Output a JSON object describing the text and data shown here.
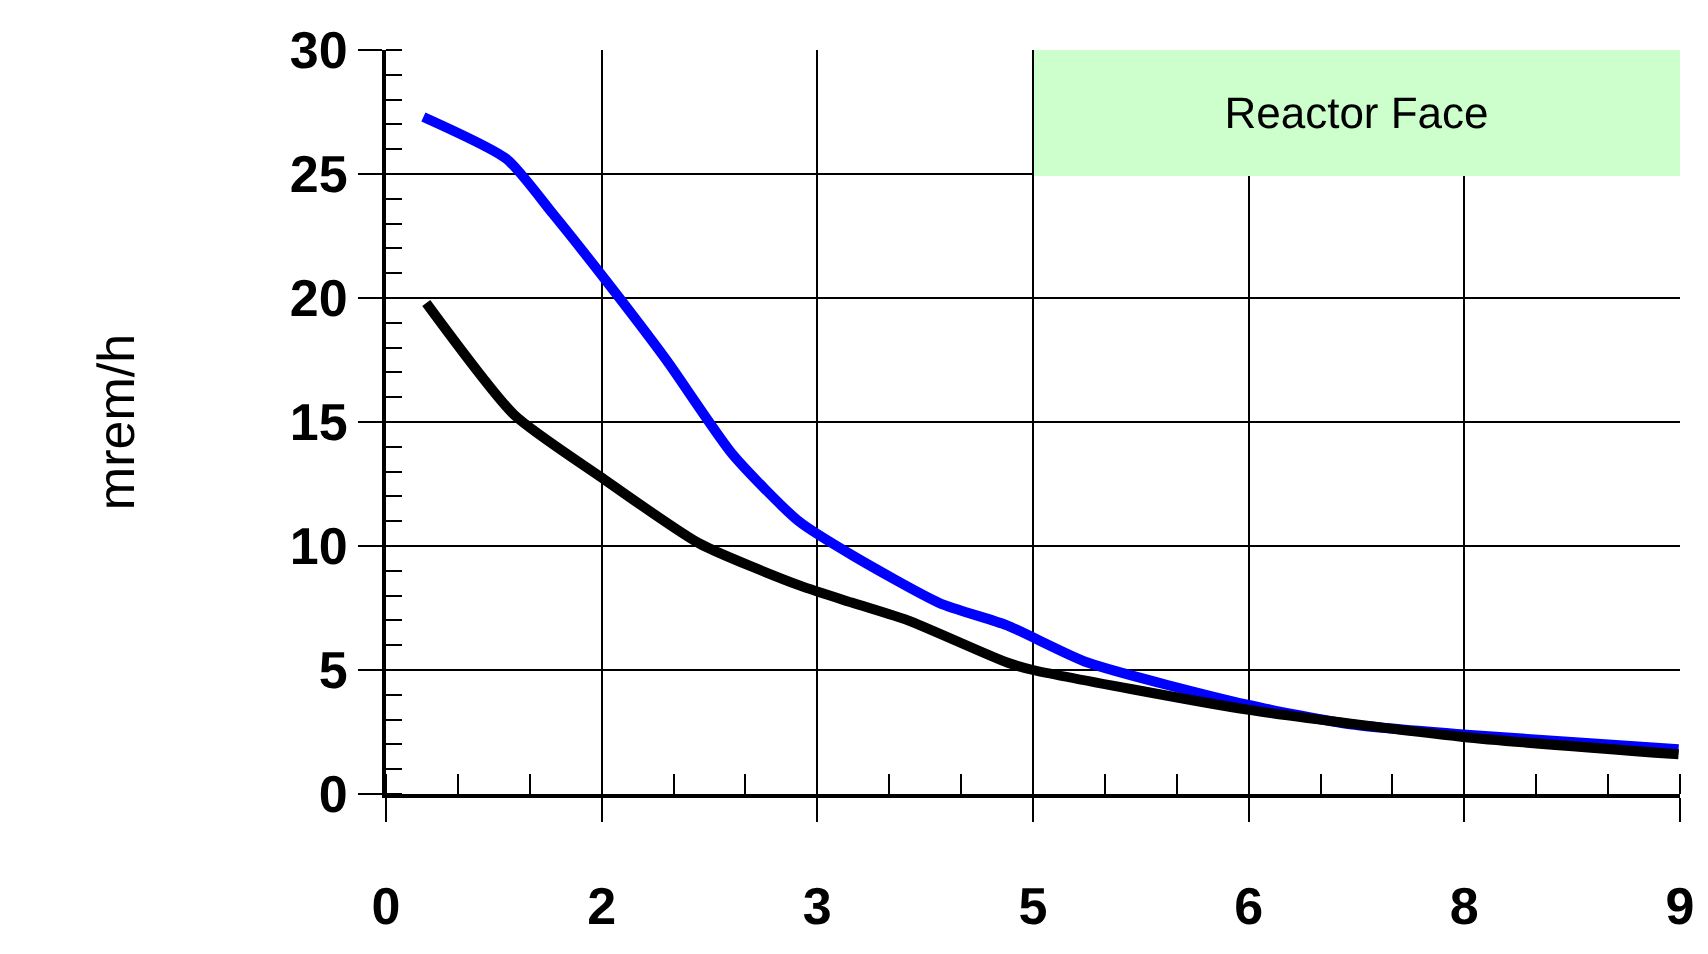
{
  "chart_data": {
    "type": "line",
    "ylabel": "mrem/h",
    "annotations": [
      "Reactor Face"
    ],
    "xlim": [
      0,
      9
    ],
    "xticks": [
      0,
      {
        "value": 1.5,
        "label": "2"
      },
      3,
      {
        "value": 4.5,
        "label": "5"
      },
      6,
      {
        "value": 7.5,
        "label": "8"
      },
      9
    ],
    "ylim": [
      0,
      30
    ],
    "yticks": [
      0,
      5,
      10,
      15,
      20,
      25,
      30
    ],
    "grid": true,
    "marker": "none",
    "line_style": "solid",
    "series": [
      {
        "color": "#0000ff",
        "x": [
          0.26,
          0.84,
          1.16,
          1.53,
          1.95,
          2.41,
          2.87,
          3.25,
          3.85,
          4.32,
          4.88,
          5.99,
          6.72,
          7.49,
          8.99
        ],
        "values": [
          27.3,
          25.6,
          23.4,
          20.7,
          17.5,
          13.7,
          11.0,
          9.6,
          7.7,
          6.8,
          5.3,
          3.6,
          2.8,
          2.4,
          1.8
        ]
      },
      {
        "color": "#000000",
        "x": [
          0.28,
          0.89,
          1.49,
          2.18,
          2.88,
          3.25,
          3.63,
          4.32,
          4.5,
          5.99,
          7.49,
          8.99
        ],
        "values": [
          19.8,
          15.3,
          12.8,
          10.1,
          8.4,
          7.7,
          7.0,
          5.3,
          5.0,
          3.4,
          2.3,
          1.6
        ]
      }
    ]
  }
}
